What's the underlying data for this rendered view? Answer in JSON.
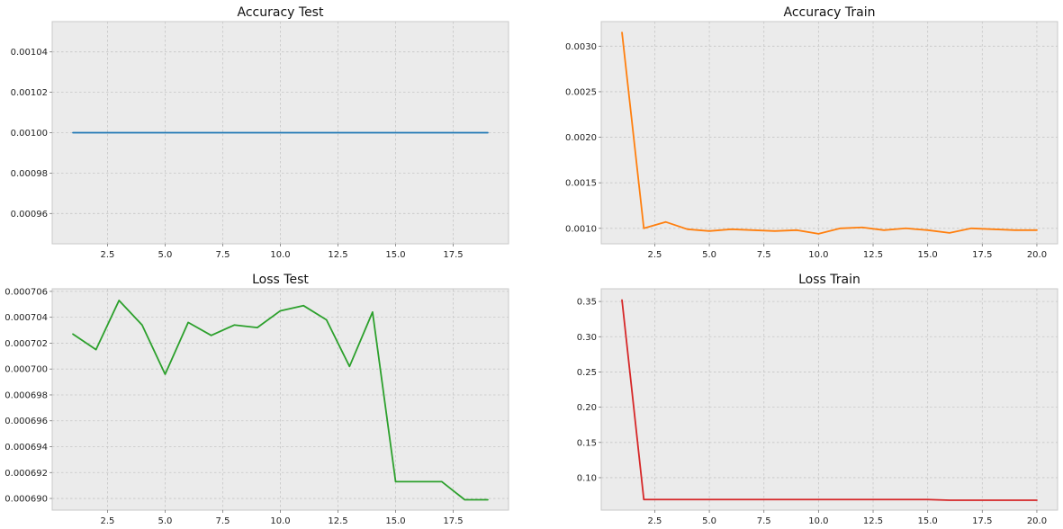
{
  "chart_data": [
    {
      "id": "accuracy-test",
      "type": "line",
      "title": "Accuracy Test",
      "xlabel": "",
      "ylabel": "",
      "xlim": [
        0.1,
        19.9
      ],
      "ylim": [
        0.000945,
        0.001055
      ],
      "xticks": [
        2.5,
        5.0,
        7.5,
        10.0,
        12.5,
        15.0,
        17.5
      ],
      "xtick_labels": [
        "2.5",
        "5.0",
        "7.5",
        "10.0",
        "12.5",
        "15.0",
        "17.5"
      ],
      "yticks": [
        0.00096,
        0.00098,
        0.001,
        0.00102,
        0.00104
      ],
      "ytick_labels": [
        "0.00096",
        "0.00098",
        "0.00100",
        "0.00102",
        "0.00104"
      ],
      "grid": true,
      "series": [
        {
          "color": "#1f77b4",
          "x": [
            1,
            2,
            3,
            4,
            5,
            6,
            7,
            8,
            9,
            10,
            11,
            12,
            13,
            14,
            15,
            16,
            17,
            18,
            19
          ],
          "y": [
            0.001,
            0.001,
            0.001,
            0.001,
            0.001,
            0.001,
            0.001,
            0.001,
            0.001,
            0.001,
            0.001,
            0.001,
            0.001,
            0.001,
            0.001,
            0.001,
            0.001,
            0.001,
            0.001
          ]
        }
      ]
    },
    {
      "id": "accuracy-train",
      "type": "line",
      "title": "Accuracy Train",
      "xlabel": "",
      "ylabel": "",
      "xlim": [
        0.05,
        20.95
      ],
      "ylim": [
        0.00083,
        0.00327
      ],
      "xticks": [
        2.5,
        5.0,
        7.5,
        10.0,
        12.5,
        15.0,
        17.5,
        20.0
      ],
      "xtick_labels": [
        "2.5",
        "5.0",
        "7.5",
        "10.0",
        "12.5",
        "15.0",
        "17.5",
        "20.0"
      ],
      "yticks": [
        0.001,
        0.0015,
        0.002,
        0.0025,
        0.003
      ],
      "ytick_labels": [
        "0.0010",
        "0.0015",
        "0.0020",
        "0.0025",
        "0.0030"
      ],
      "grid": true,
      "series": [
        {
          "color": "#ff7f0e",
          "x": [
            1,
            2,
            3,
            4,
            5,
            6,
            7,
            8,
            9,
            10,
            11,
            12,
            13,
            14,
            15,
            16,
            17,
            18,
            19,
            20
          ],
          "y": [
            0.00315,
            0.001,
            0.00107,
            0.00099,
            0.00097,
            0.00099,
            0.00098,
            0.00097,
            0.00098,
            0.00094,
            0.001,
            0.00101,
            0.00098,
            0.001,
            0.00098,
            0.00095,
            0.001,
            0.00099,
            0.00098,
            0.00098
          ]
        }
      ]
    },
    {
      "id": "loss-test",
      "type": "line",
      "title": "Loss Test",
      "xlabel": "",
      "ylabel": "",
      "xlim": [
        0.1,
        19.9
      ],
      "ylim": [
        0.0006891,
        0.0007062
      ],
      "xticks": [
        2.5,
        5.0,
        7.5,
        10.0,
        12.5,
        15.0,
        17.5
      ],
      "xtick_labels": [
        "2.5",
        "5.0",
        "7.5",
        "10.0",
        "12.5",
        "15.0",
        "17.5"
      ],
      "yticks": [
        0.00069,
        0.000692,
        0.000694,
        0.000696,
        0.000698,
        0.0007,
        0.000702,
        0.000704,
        0.000706
      ],
      "ytick_labels": [
        "0.000690",
        "0.000692",
        "0.000694",
        "0.000696",
        "0.000698",
        "0.000700",
        "0.000702",
        "0.000704",
        "0.000706"
      ],
      "grid": true,
      "series": [
        {
          "color": "#2ca02c",
          "x": [
            1,
            2,
            3,
            4,
            5,
            6,
            7,
            8,
            9,
            10,
            11,
            12,
            13,
            14,
            15,
            16,
            17,
            18,
            19
          ],
          "y": [
            0.0007027,
            0.0007015,
            0.0007053,
            0.0007034,
            0.0006996,
            0.0007036,
            0.0007026,
            0.0007034,
            0.0007032,
            0.0007045,
            0.0007049,
            0.0007038,
            0.0007002,
            0.0007044,
            0.0006913,
            0.0006913,
            0.0006913,
            0.0006899,
            0.0006899
          ]
        }
      ]
    },
    {
      "id": "loss-train",
      "type": "line",
      "title": "Loss Train",
      "xlabel": "",
      "ylabel": "",
      "xlim": [
        0.05,
        20.95
      ],
      "ylim": [
        0.054,
        0.368
      ],
      "xticks": [
        2.5,
        5.0,
        7.5,
        10.0,
        12.5,
        15.0,
        17.5,
        20.0
      ],
      "xtick_labels": [
        "2.5",
        "5.0",
        "7.5",
        "10.0",
        "12.5",
        "15.0",
        "17.5",
        "20.0"
      ],
      "yticks": [
        0.1,
        0.15,
        0.2,
        0.25,
        0.3,
        0.35
      ],
      "ytick_labels": [
        "0.10",
        "0.15",
        "0.20",
        "0.25",
        "0.30",
        "0.35"
      ],
      "grid": true,
      "series": [
        {
          "color": "#d62728",
          "x": [
            1,
            2,
            3,
            4,
            5,
            6,
            7,
            8,
            9,
            10,
            11,
            12,
            13,
            14,
            15,
            16,
            17,
            18,
            19,
            20
          ],
          "y": [
            0.352,
            0.069,
            0.069,
            0.069,
            0.069,
            0.069,
            0.069,
            0.069,
            0.069,
            0.069,
            0.069,
            0.069,
            0.069,
            0.069,
            0.069,
            0.068,
            0.068,
            0.068,
            0.068,
            0.068
          ]
        }
      ]
    }
  ]
}
